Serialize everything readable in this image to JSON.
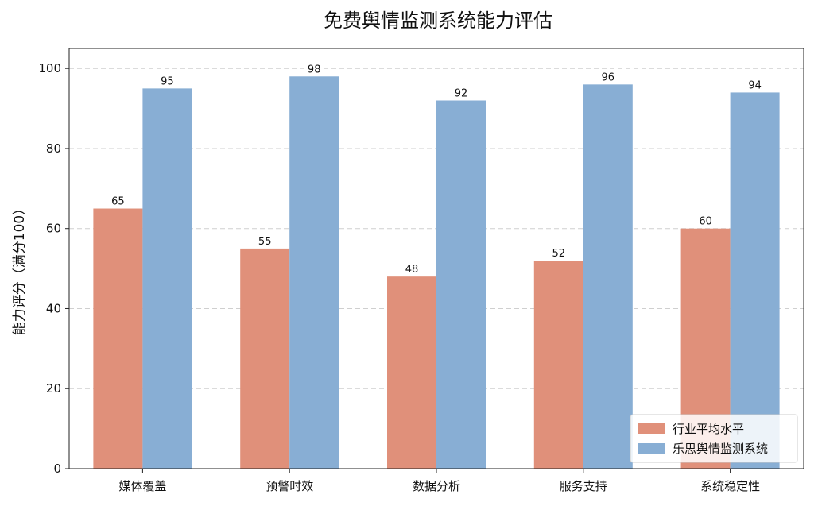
{
  "chart_data": {
    "type": "bar",
    "title": "免费舆情监测系统能力评估",
    "xlabel": "",
    "ylabel": "能力评分（满分100）",
    "categories": [
      "媒体覆盖",
      "预警时效",
      "数据分析",
      "服务支持",
      "系统稳定性"
    ],
    "series": [
      {
        "name": "行业平均水平",
        "values": [
          65,
          55,
          48,
          52,
          60
        ],
        "color": "#e0907a"
      },
      {
        "name": "乐思舆情监测系统",
        "values": [
          95,
          98,
          92,
          96,
          94
        ],
        "color": "#88aed4"
      }
    ],
    "ylim": [
      0,
      105
    ],
    "yticks": [
      0,
      20,
      40,
      60,
      80,
      100
    ],
    "grid": true,
    "grid_axis": "y",
    "legend_position": "lower-right",
    "show_data_labels": true
  }
}
